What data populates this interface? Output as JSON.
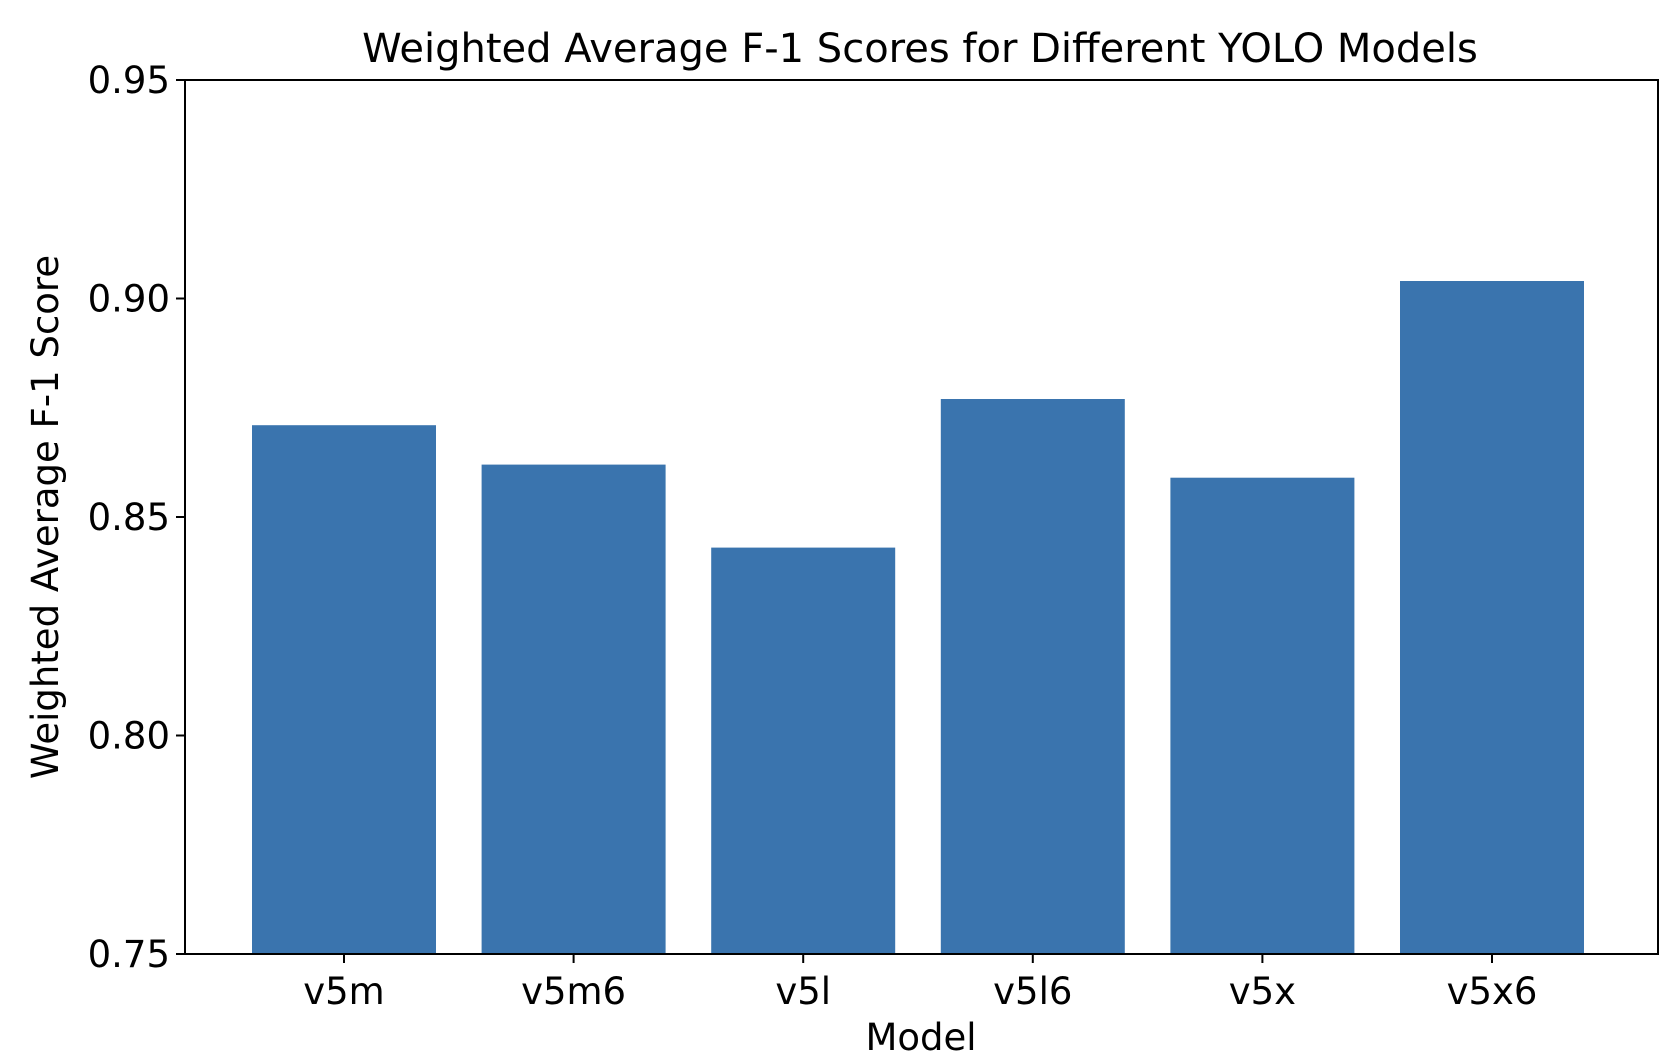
{
  "chart_data": {
    "type": "bar",
    "title": "Weighted Average F-1 Scores for Different YOLO Models",
    "xlabel": "Model",
    "ylabel": "Weighted Average F-1 Score",
    "categories": [
      "v5m",
      "v5m6",
      "v5l",
      "v5l6",
      "v5x",
      "v5x6"
    ],
    "values": [
      0.871,
      0.862,
      0.843,
      0.877,
      0.859,
      0.904
    ],
    "ylim": [
      0.75,
      0.95
    ],
    "yticks": [
      "0.75",
      "0.80",
      "0.85",
      "0.90",
      "0.95"
    ],
    "grid": false,
    "legend": "none",
    "colors": {
      "bar": "#3a74ae"
    }
  }
}
